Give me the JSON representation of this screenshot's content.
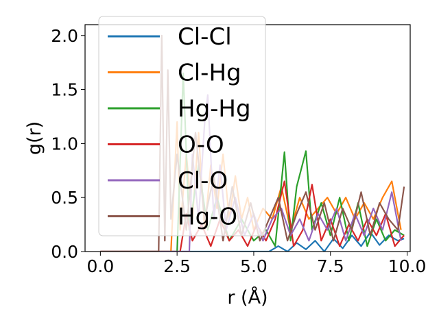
{
  "chart_data": {
    "type": "line",
    "xlabel": "r (Å)",
    "ylabel": "g(r)",
    "xlim": [
      -0.5,
      10.1
    ],
    "ylim": [
      0.0,
      2.1
    ],
    "xticks": [
      "0.0",
      "2.5",
      "5.0",
      "7.5",
      "10.0"
    ],
    "yticks": [
      "0.0",
      "0.5",
      "1.0",
      "1.5",
      "2.0"
    ],
    "grid": false,
    "legend_position": "upper-left",
    "series": [
      {
        "name": "Cl-Cl",
        "color": "#1f77b4",
        "x": [
          0.0,
          5.5,
          5.8,
          6.1,
          6.4,
          6.7,
          7.0,
          7.3,
          7.6,
          7.9,
          8.2,
          8.5,
          8.8,
          9.1,
          9.4,
          9.7,
          9.9
        ],
        "y": [
          0.0,
          0.0,
          0.05,
          0.0,
          0.08,
          0.02,
          0.1,
          0.0,
          0.12,
          0.03,
          0.15,
          0.05,
          0.18,
          0.06,
          0.15,
          0.1,
          0.12
        ]
      },
      {
        "name": "Cl-Hg",
        "color": "#ff7f0e",
        "x": [
          0.0,
          2.3,
          2.4,
          2.5,
          2.6,
          2.8,
          3.0,
          3.2,
          3.4,
          3.6,
          3.8,
          4.0,
          4.2,
          4.4,
          4.6,
          4.8,
          5.0,
          5.3,
          5.6,
          5.9,
          6.2,
          6.5,
          6.8,
          7.1,
          7.4,
          7.7,
          8.0,
          8.3,
          8.6,
          8.9,
          9.2,
          9.5,
          9.8
        ],
        "y": [
          0.0,
          0.0,
          0.6,
          1.2,
          0.2,
          0.9,
          0.3,
          1.1,
          0.2,
          0.8,
          0.4,
          0.9,
          0.3,
          0.7,
          0.3,
          0.5,
          0.2,
          0.4,
          0.3,
          0.6,
          0.2,
          0.5,
          0.3,
          0.4,
          0.5,
          0.35,
          0.5,
          0.3,
          0.45,
          0.3,
          0.5,
          0.65,
          0.2
        ]
      },
      {
        "name": "Hg-Hg",
        "color": "#2ca02c",
        "x": [
          0.0,
          2.5,
          2.7,
          2.9,
          3.2,
          3.5,
          3.8,
          4.2,
          4.6,
          5.0,
          5.4,
          5.7,
          6.0,
          6.2,
          6.4,
          6.7,
          6.9,
          7.2,
          7.5,
          7.8,
          8.1,
          8.4,
          8.7,
          9.0,
          9.3,
          9.6,
          9.9
        ],
        "y": [
          0.0,
          0.0,
          1.65,
          0.2,
          0.8,
          0.2,
          0.5,
          0.1,
          0.3,
          0.1,
          0.2,
          0.05,
          0.92,
          0.1,
          0.6,
          0.93,
          0.2,
          0.45,
          0.15,
          0.5,
          0.1,
          0.45,
          0.05,
          0.3,
          0.1,
          0.2,
          0.15
        ]
      },
      {
        "name": "O-O",
        "color": "#d62728",
        "x": [
          0.0,
          2.6,
          2.8,
          3.0,
          3.3,
          3.6,
          3.9,
          4.2,
          4.5,
          4.8,
          5.1,
          5.4,
          5.7,
          6.0,
          6.3,
          6.6,
          6.9,
          7.2,
          7.5,
          7.8,
          8.1,
          8.4,
          8.7,
          9.0,
          9.3,
          9.6,
          9.9
        ],
        "y": [
          0.0,
          0.0,
          0.35,
          0.1,
          0.25,
          0.05,
          0.3,
          0.1,
          0.2,
          0.05,
          0.25,
          0.1,
          0.3,
          0.65,
          0.05,
          0.2,
          0.62,
          0.1,
          0.3,
          0.05,
          0.25,
          0.1,
          0.3,
          0.15,
          0.35,
          0.05,
          0.15
        ]
      },
      {
        "name": "Cl-O",
        "color": "#9467bd",
        "x": [
          0.0,
          2.9,
          3.0,
          3.2,
          3.4,
          3.5,
          3.7,
          3.9,
          4.1,
          4.4,
          4.7,
          5.0,
          5.3,
          5.6,
          5.9,
          6.2,
          6.5,
          6.8,
          7.1,
          7.4,
          7.7,
          8.0,
          8.3,
          8.6,
          8.9,
          9.2,
          9.5,
          9.8
        ],
        "y": [
          0.0,
          0.0,
          0.9,
          0.3,
          1.2,
          1.45,
          0.3,
          0.8,
          0.2,
          0.5,
          0.15,
          0.35,
          0.1,
          0.3,
          0.4,
          0.15,
          0.3,
          0.1,
          0.35,
          0.2,
          0.4,
          0.1,
          0.35,
          0.15,
          0.4,
          0.2,
          0.55,
          0.1
        ]
      },
      {
        "name": "Hg-O",
        "color": "#8c564b",
        "x": [
          0.0,
          1.9,
          2.0,
          2.1,
          2.2,
          2.3,
          2.5,
          2.8,
          3.1,
          3.4,
          3.7,
          4.0,
          4.3,
          4.6,
          4.9,
          5.2,
          5.5,
          5.8,
          6.1,
          6.4,
          6.7,
          7.0,
          7.3,
          7.6,
          7.9,
          8.2,
          8.5,
          8.8,
          9.1,
          9.4,
          9.7,
          9.9
        ],
        "y": [
          0.0,
          0.0,
          2.0,
          0.1,
          1.68,
          0.3,
          0.9,
          0.2,
          1.1,
          0.3,
          0.7,
          0.1,
          0.6,
          0.15,
          0.45,
          0.1,
          0.3,
          0.5,
          0.1,
          0.35,
          0.55,
          0.2,
          0.45,
          0.1,
          0.4,
          0.2,
          0.55,
          0.15,
          0.45,
          0.3,
          0.2,
          0.6
        ]
      }
    ]
  }
}
